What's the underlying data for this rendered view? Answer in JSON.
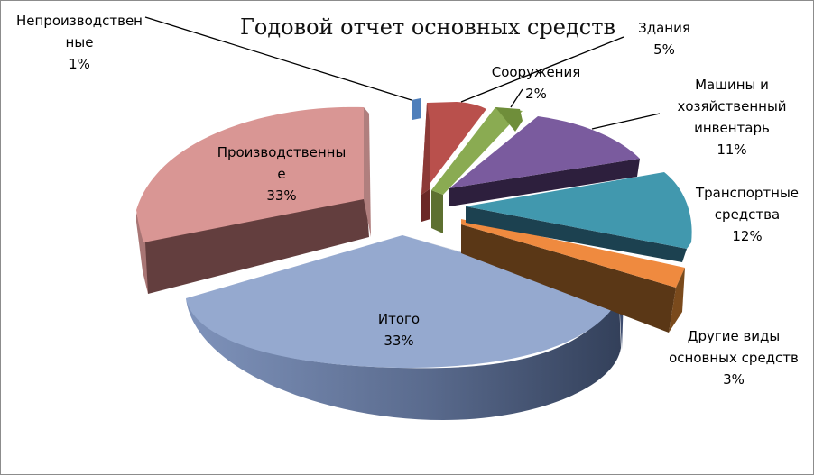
{
  "chart_data": {
    "type": "pie",
    "title": "Годовой отчет основных средств",
    "slices": [
      {
        "label_lines": [
          "Непроизводствен",
          "ные",
          "1%"
        ],
        "value": 1,
        "color": "#4f81bd"
      },
      {
        "label_lines": [
          "Здания",
          "5%"
        ],
        "value": 5,
        "color": "#c0504d"
      },
      {
        "label_lines": [
          "Сооружения",
          "2%"
        ],
        "value": 2,
        "color": "#9bbb59"
      },
      {
        "label_lines": [
          "Машины и",
          "хозяйственный",
          "инвентарь",
          "11%"
        ],
        "value": 11,
        "color": "#8064a2"
      },
      {
        "label_lines": [
          "Транспортные",
          "средства",
          "12%"
        ],
        "value": 12,
        "color": "#4bacc6"
      },
      {
        "label_lines": [
          "Другие виды",
          "основных средств",
          "3%"
        ],
        "value": 3,
        "color": "#f79646"
      },
      {
        "label_lines": [
          "Итого",
          "33%"
        ],
        "value": 33,
        "color": "#95a9cf"
      },
      {
        "label_lines": [
          "Производственны",
          "е",
          "33%"
        ],
        "value": 33,
        "color": "#d99694"
      }
    ],
    "legend": "none",
    "style": "3d-exploded-pie"
  }
}
